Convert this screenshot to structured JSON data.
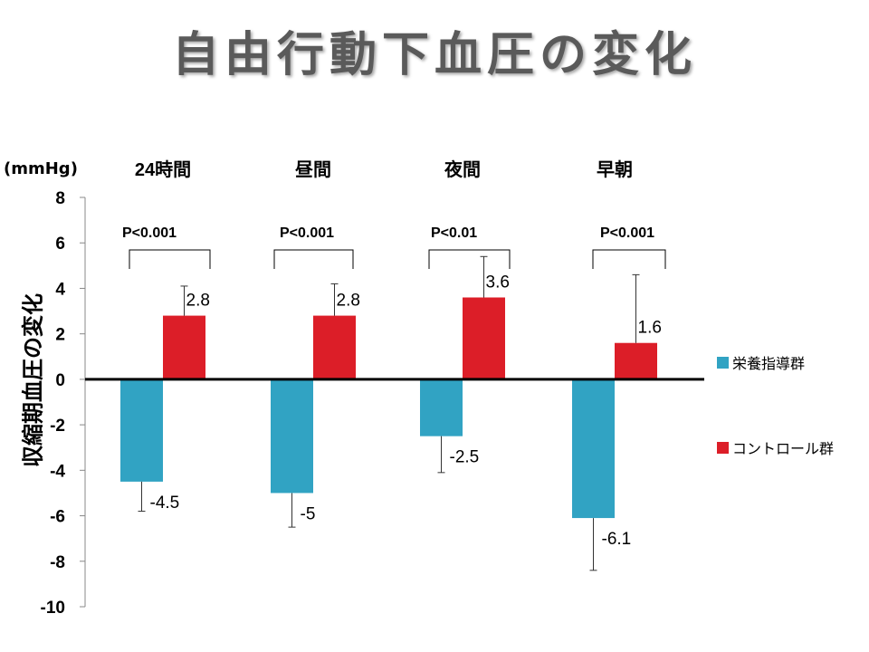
{
  "title": "自由行動下血圧の変化",
  "chart_data": {
    "type": "bar",
    "unit_label": "(mmHg)",
    "ylabel": "収縮期血圧の変化",
    "xlabel": "",
    "categories": [
      "24時間",
      "昼間",
      "夜間",
      "早朝"
    ],
    "series": [
      {
        "name": "栄養指導群",
        "color": "#31a3c3",
        "values": [
          -4.5,
          -5,
          -2.5,
          -6.1
        ],
        "error": [
          1.3,
          1.5,
          1.6,
          2.3
        ],
        "value_labels": [
          "-4.5",
          "-5",
          "-2.5",
          "-6.1"
        ]
      },
      {
        "name": "コントロール群",
        "color": "#dc1e28",
        "values": [
          2.8,
          2.8,
          3.6,
          1.6
        ],
        "error": [
          1.3,
          1.4,
          1.8,
          3.0
        ],
        "value_labels": [
          "2.8",
          "2.8",
          "3.6",
          "1.6"
        ]
      }
    ],
    "p_values": [
      "P<0.001",
      "P<0.001",
      "P<0.01",
      "P<0.001"
    ],
    "ylim": [
      -10,
      8
    ],
    "yticks": [
      8,
      6,
      4,
      2,
      0,
      -2,
      -4,
      -6,
      -8,
      -10
    ],
    "ytick_labels": [
      "8",
      "6",
      "4",
      "2",
      "0",
      "-2",
      "-4",
      "-6",
      "-8",
      "-10"
    ],
    "grid": false,
    "legend_position": "right"
  }
}
